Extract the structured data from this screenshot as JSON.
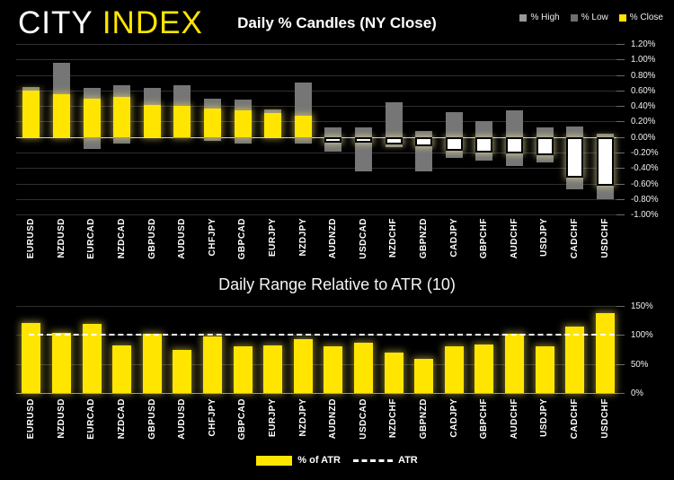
{
  "header": {
    "logo_part1": "CITY ",
    "logo_part2": "INDEX",
    "legend": [
      {
        "label": "% High",
        "color": "#989898"
      },
      {
        "label": "% Low",
        "color": "#6e6e6e"
      },
      {
        "label": "% Close",
        "color": "#ffe500"
      }
    ]
  },
  "colors": {
    "background": "#000000",
    "close_positive": "#ffe500",
    "close_negative": "#ffffff",
    "wick_gray": "#767676",
    "grid": "#2f2f2f",
    "zero_line": "#cfcfcf",
    "atr_line": "#ffffff"
  },
  "chart_data": [
    {
      "type": "bar",
      "subtype": "percent-candles",
      "title": "Daily % Candles (NY Close)",
      "categories": [
        "EURUSD",
        "NZDUSD",
        "EURCAD",
        "NZDCAD",
        "GBPUSD",
        "AUDUSD",
        "CHFJPY",
        "GBPCAD",
        "EURJPY",
        "NZDJPY",
        "AUDNZD",
        "USDCAD",
        "NZDCHF",
        "GBPNZD",
        "CADJPY",
        "GBPCHF",
        "AUDCHF",
        "USDJPY",
        "CADCHF",
        "USDCHF"
      ],
      "series": [
        {
          "name": "% High",
          "values": [
            0.65,
            0.96,
            0.63,
            0.67,
            0.63,
            0.67,
            0.5,
            0.48,
            0.35,
            0.7,
            0.12,
            0.12,
            0.45,
            0.08,
            0.32,
            0.21,
            0.34,
            0.12,
            0.14,
            0.04
          ]
        },
        {
          "name": "% Low",
          "values": [
            0.0,
            0.0,
            -0.15,
            -0.08,
            0.0,
            -0.02,
            -0.05,
            -0.08,
            0.0,
            -0.08,
            -0.19,
            -0.44,
            -0.13,
            -0.44,
            -0.27,
            -0.3,
            -0.37,
            -0.33,
            -0.68,
            -0.8
          ]
        },
        {
          "name": "% Close",
          "values": [
            0.6,
            0.55,
            0.5,
            0.52,
            0.41,
            0.4,
            0.37,
            0.34,
            0.31,
            0.27,
            -0.07,
            -0.07,
            -0.1,
            -0.12,
            -0.18,
            -0.2,
            -0.21,
            -0.24,
            -0.53,
            -0.63
          ]
        }
      ],
      "ylim": [
        -1.0,
        1.2
      ],
      "ytick_values": [
        1.2,
        1.0,
        0.8,
        0.6,
        0.4,
        0.2,
        0.0,
        -0.2,
        -0.4,
        -0.6,
        -0.8,
        -1.0
      ],
      "yticks": [
        "1.20%",
        "1.00%",
        "0.80%",
        "0.60%",
        "0.40%",
        "0.20%",
        "0.00%",
        "-0.20%",
        "-0.40%",
        "-0.60%",
        "-0.80%",
        "-1.00%"
      ],
      "grid": true,
      "legend_position": "top-right"
    },
    {
      "type": "bar",
      "title": "Daily Range Relative to ATR (10)",
      "categories": [
        "EURUSD",
        "NZDUSD",
        "EURCAD",
        "NZDCAD",
        "GBPUSD",
        "AUDUSD",
        "CHFJPY",
        "GBPCAD",
        "EURJPY",
        "NZDJPY",
        "AUDNZD",
        "USDCAD",
        "NZDCHF",
        "GBPNZD",
        "CADJPY",
        "GBPCHF",
        "AUDCHF",
        "USDJPY",
        "CADCHF",
        "USDCHF"
      ],
      "series": [
        {
          "name": "% of ATR",
          "values": [
            120,
            104,
            119,
            82,
            102,
            75,
            97,
            80,
            82,
            93,
            81,
            86,
            69,
            59,
            80,
            84,
            102,
            80,
            115,
            137
          ]
        }
      ],
      "reference_line": {
        "name": "ATR",
        "value": 100,
        "style": "dashed"
      },
      "ylim": [
        0,
        150
      ],
      "ytick_values": [
        150,
        100,
        50,
        0
      ],
      "yticks": [
        "150%",
        "100%",
        "50%",
        "0%"
      ],
      "grid": true,
      "legend_position": "bottom-center",
      "legend": [
        {
          "label": "% of ATR",
          "swatch": "bar"
        },
        {
          "label": "ATR",
          "swatch": "dashed"
        }
      ]
    }
  ]
}
